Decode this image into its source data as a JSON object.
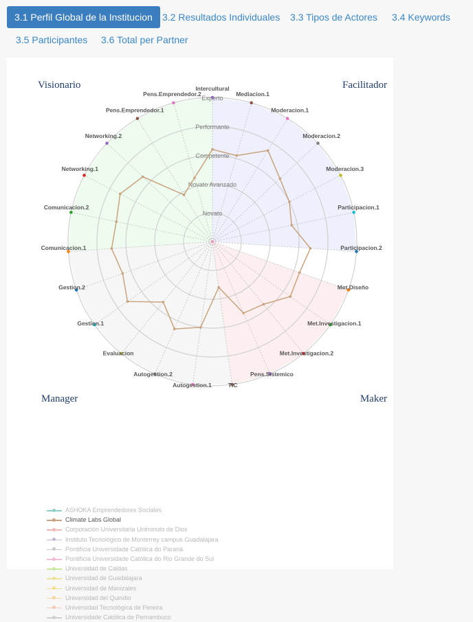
{
  "tabs": [
    {
      "label": "3.1 Perfil Global de la Institucion",
      "active": true
    },
    {
      "label": "3.2 Resultados Individuales",
      "active": false
    },
    {
      "label": "3.3 Tipos de Actores",
      "active": false
    },
    {
      "label": "3.4 Keywords",
      "active": false
    },
    {
      "label": "3.5 Participantes",
      "active": false
    },
    {
      "label": "3.6 Total per Partner",
      "active": false
    }
  ],
  "chart_data": {
    "type": "radar",
    "quadrant_labels": [
      "Visionario",
      "Facilitador",
      "Maker",
      "Manager"
    ],
    "levels": [
      "Novato",
      "Novato Avanzado",
      "Competente",
      "Performante",
      "Experto"
    ],
    "axes": [
      {
        "label": "Intercultural",
        "color": "#9467bd"
      },
      {
        "label": "Mediacion.1",
        "color": "#8c564b"
      },
      {
        "label": "Moderacion.1",
        "color": "#e377c2"
      },
      {
        "label": "Moderacion.2",
        "color": "#7f7f7f"
      },
      {
        "label": "Moderacion.3",
        "color": "#bcbd22"
      },
      {
        "label": "Participacion.1",
        "color": "#17becf"
      },
      {
        "label": "Participacion.2",
        "color": "#1f77b4"
      },
      {
        "label": "Met.Diseño",
        "color": "#ff7f0e"
      },
      {
        "label": "Met.Investigacion.1",
        "color": "#2ca02c"
      },
      {
        "label": "Met.Investigacion.2",
        "color": "#d62728"
      },
      {
        "label": "Pens.Sistemico",
        "color": "#9467bd"
      },
      {
        "label": "TIC",
        "color": "#8c564b"
      },
      {
        "label": "Autogestion.1",
        "color": "#e377c2"
      },
      {
        "label": "Autogestion.2",
        "color": "#7f7f7f"
      },
      {
        "label": "Evaluacion",
        "color": "#bcbd22"
      },
      {
        "label": "Gestion.1",
        "color": "#17becf"
      },
      {
        "label": "Gestion.2",
        "color": "#1f77b4"
      },
      {
        "label": "Comunicacion.1",
        "color": "#ff7f0e"
      },
      {
        "label": "Comunicacion.2",
        "color": "#2ca02c"
      },
      {
        "label": "Networking.1",
        "color": "#d62728"
      },
      {
        "label": "Networking.2",
        "color": "#9467bd"
      },
      {
        "label": "Pens.Emprendedor.1",
        "color": "#8c564b"
      },
      {
        "label": "Pens.Emprendedor.2",
        "color": "#e377c2"
      }
    ],
    "series": [
      {
        "name": "Climate Labs Global",
        "color": "#c9a27e",
        "values": [
          3.2,
          3.1,
          3.7,
          3.2,
          3.0,
          2.8,
          3.4,
          3.2,
          3.3,
          2.8,
          2.7,
          1.6,
          3.0,
          3.3,
          2.7,
          3.6,
          3.3,
          3.5,
          3.4,
          3.6,
          3.3,
          1.9,
          2.3
        ]
      }
    ],
    "legend": [
      {
        "name": "ASHOKA Emprendedores Sociales",
        "color": "#8ccfc4",
        "active": false
      },
      {
        "name": "Climate Labs Global",
        "color": "#c9a27e",
        "active": true
      },
      {
        "name": "Corporación Universitaria Uniminuto de Dios",
        "color": "#f2b8b8",
        "active": false
      },
      {
        "name": "Instituto Tecnológico de Monterrey campus Guadalajara",
        "color": "#c3b8d8",
        "active": false
      },
      {
        "name": "Pontifícia Universidade Católica do Paraná",
        "color": "#c8c8c8",
        "active": false
      },
      {
        "name": "Pontifícia Universidade Católica do Rio Grande do Sul",
        "color": "#f0bcd8",
        "active": false
      },
      {
        "name": "Universidad de Caldas",
        "color": "#c8e6a0",
        "active": false
      },
      {
        "name": "Universidad de Guadalajara",
        "color": "#e9e29a",
        "active": false
      },
      {
        "name": "Universidad de Manizales",
        "color": "#f6dc8c",
        "active": false
      },
      {
        "name": "Universidad del Quindio",
        "color": "#f3d79e",
        "active": false
      },
      {
        "name": "Universidad Tecnológica de Pereira",
        "color": "#f3c9b8",
        "active": false
      },
      {
        "name": "Universidade Católica de Pernambuco",
        "color": "#cfcfcf",
        "active": false
      }
    ],
    "colors": {
      "visionario_fill": "#eefcef",
      "facilitador_fill": "#eef0fd",
      "maker_fill": "#fdeff0",
      "manager_fill": "#f6f6f6",
      "grid": "#d0d0d0",
      "quadrant_title": "#1f3d6b"
    }
  }
}
